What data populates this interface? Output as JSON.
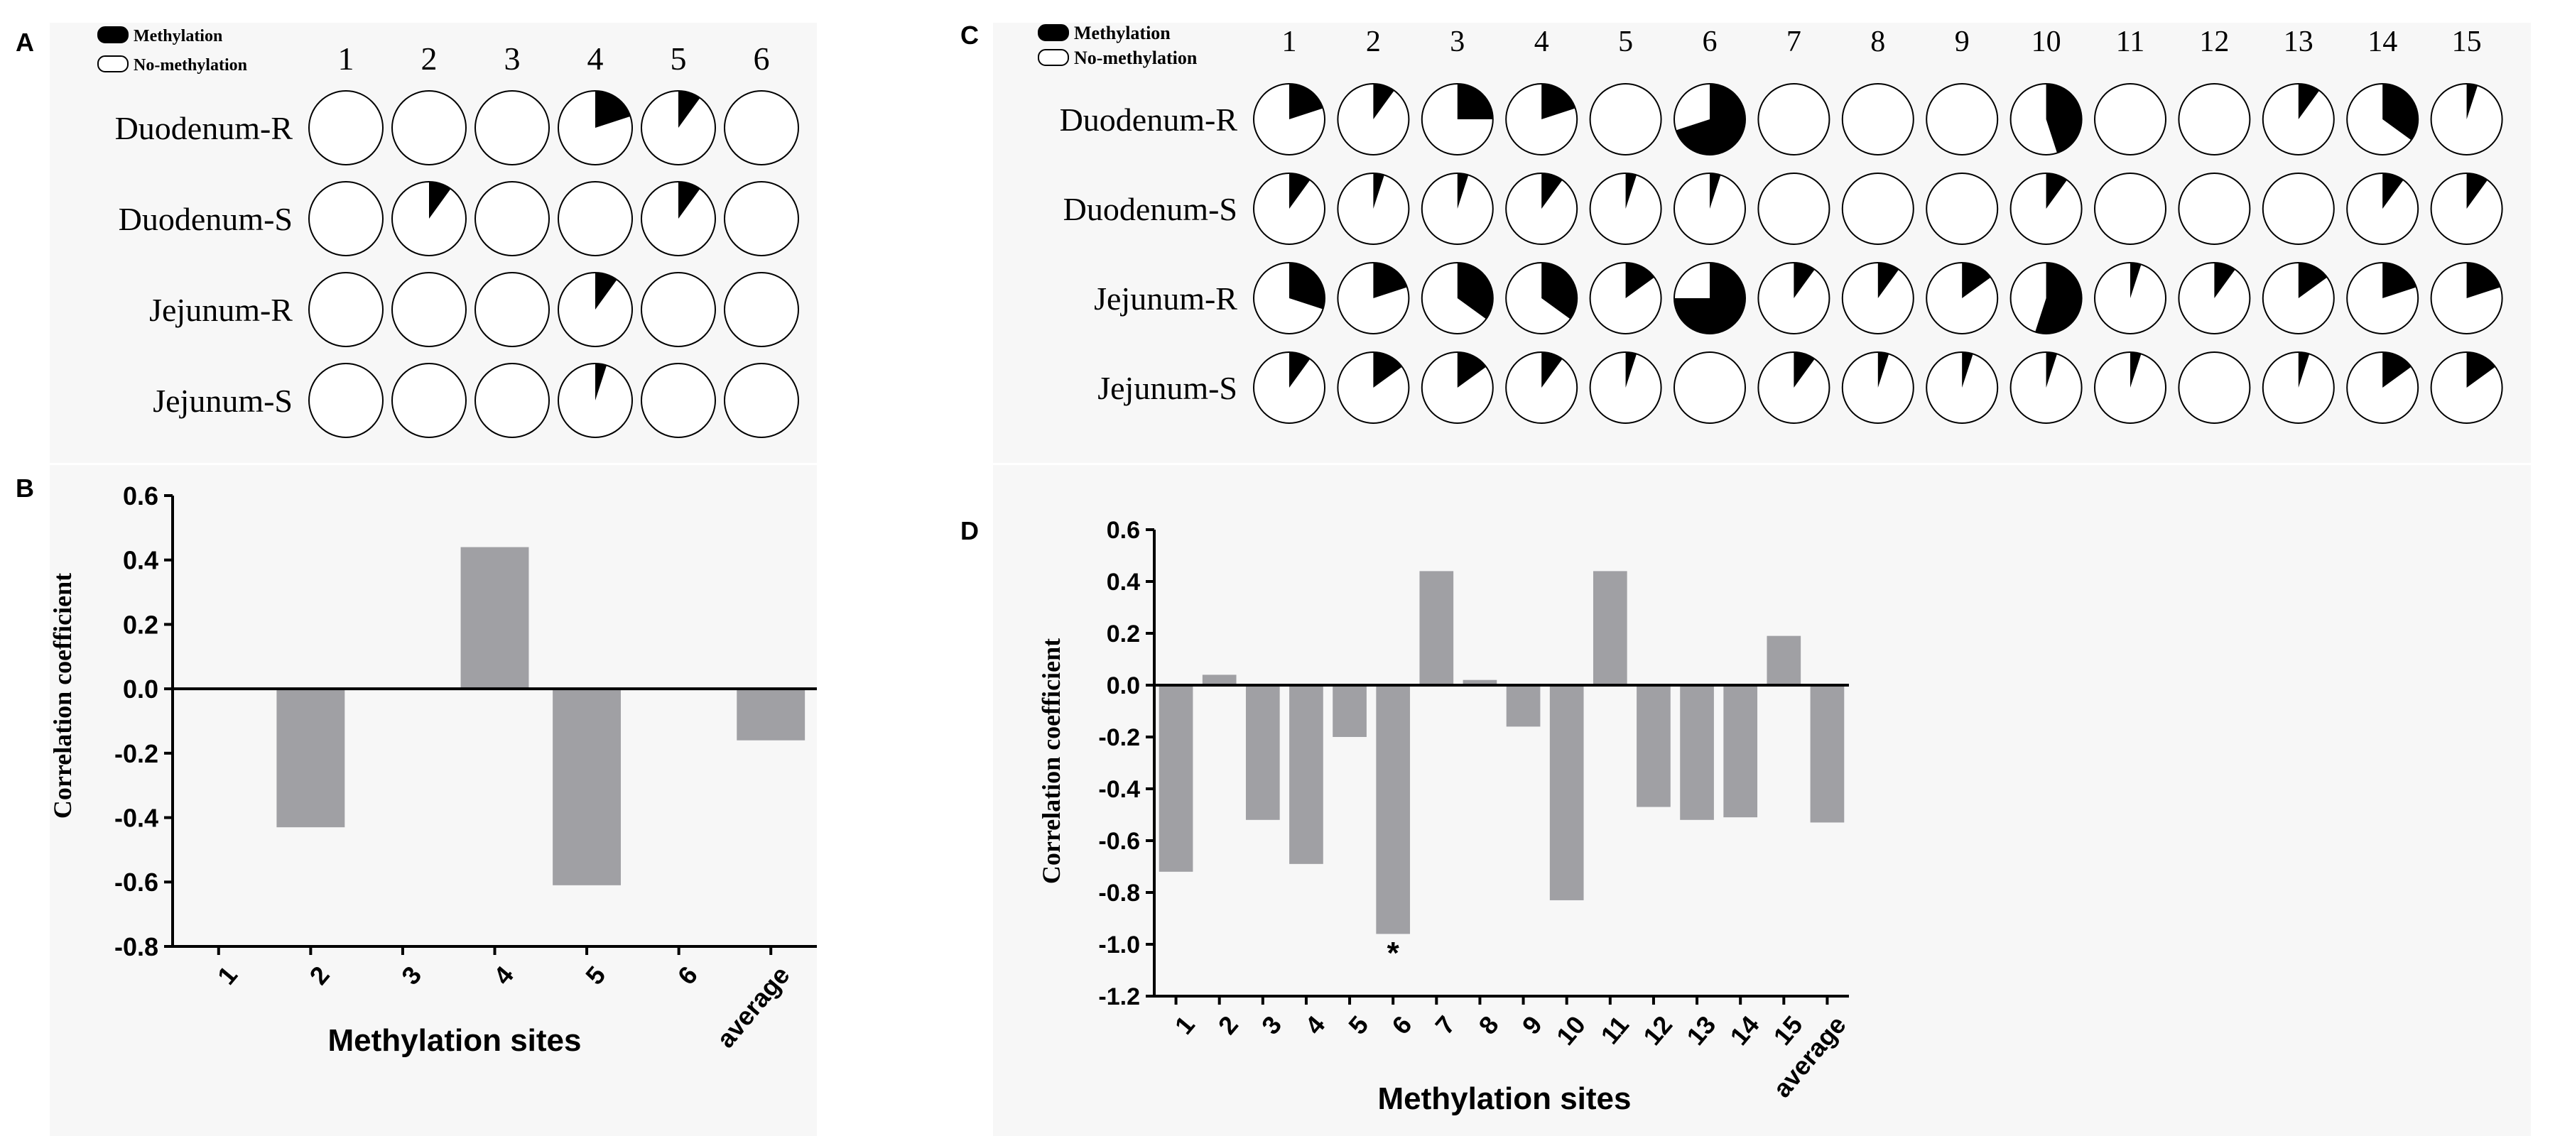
{
  "figure": {
    "panel_labels": {
      "a": "A",
      "b": "B",
      "c": "C",
      "d": "D"
    },
    "legend": {
      "methylation": "Methylation",
      "no_methylation": "No-methylation"
    },
    "colors": {
      "methylated": "#000000",
      "unmethylated": "#ffffff",
      "bar": "#a0a0a4",
      "panel_bg": "#f7f7f7",
      "axis": "#000000"
    }
  },
  "chart_data": [
    {
      "id": "A",
      "type": "pie-grid",
      "title": "",
      "columns": [
        "1",
        "2",
        "3",
        "4",
        "5",
        "6"
      ],
      "rows": [
        "Duodenum-R",
        "Duodenum-S",
        "Jejunum-R",
        "Jejunum-S"
      ],
      "methylation_fraction": [
        [
          0,
          0,
          0,
          0.2,
          0.1,
          0
        ],
        [
          0,
          0.1,
          0,
          0,
          0.1,
          0
        ],
        [
          0,
          0,
          0,
          0.1,
          0,
          0
        ],
        [
          0,
          0,
          0,
          0.05,
          0,
          0
        ]
      ],
      "legend": [
        "Methylation",
        "No-methylation"
      ]
    },
    {
      "id": "B",
      "type": "bar",
      "categories": [
        "1",
        "2",
        "3",
        "4",
        "5",
        "6",
        "average"
      ],
      "values": [
        0,
        -0.43,
        0,
        0.44,
        -0.61,
        0,
        -0.16
      ],
      "title": "",
      "xlabel": "Methylation sites",
      "ylabel": "Correlation coefficient",
      "ylim": [
        -0.8,
        0.6
      ],
      "yticks": [
        "0.6",
        "0.4",
        "0.2",
        "0.0",
        "-0.2",
        "-0.4",
        "-0.6",
        "-0.8"
      ],
      "grid": false
    },
    {
      "id": "C",
      "type": "pie-grid",
      "title": "",
      "columns": [
        "1",
        "2",
        "3",
        "4",
        "5",
        "6",
        "7",
        "8",
        "9",
        "10",
        "11",
        "12",
        "13",
        "14",
        "15"
      ],
      "rows": [
        "Duodenum-R",
        "Duodenum-S",
        "Jejunum-R",
        "Jejunum-S"
      ],
      "methylation_fraction": [
        [
          0.2,
          0.1,
          0.25,
          0.2,
          0,
          0.7,
          0,
          0,
          0,
          0.45,
          0,
          0,
          0.1,
          0.35,
          0.05
        ],
        [
          0.1,
          0.05,
          0.05,
          0.1,
          0.05,
          0.05,
          0,
          0,
          0,
          0.1,
          0,
          0,
          0,
          0.1,
          0.1
        ],
        [
          0.3,
          0.2,
          0.35,
          0.35,
          0.15,
          0.75,
          0.1,
          0.1,
          0.15,
          0.55,
          0.05,
          0.1,
          0.15,
          0.2,
          0.2
        ],
        [
          0.1,
          0.15,
          0.15,
          0.1,
          0.05,
          0,
          0.1,
          0.05,
          0.05,
          0.05,
          0.05,
          0,
          0.05,
          0.15,
          0.15
        ]
      ],
      "legend": [
        "Methylation",
        "No-methylation"
      ]
    },
    {
      "id": "D",
      "type": "bar",
      "categories": [
        "1",
        "2",
        "3",
        "4",
        "5",
        "6",
        "7",
        "8",
        "9",
        "10",
        "11",
        "12",
        "13",
        "14",
        "15",
        "average"
      ],
      "values": [
        -0.72,
        0.04,
        -0.52,
        -0.69,
        -0.2,
        -0.96,
        0.44,
        0.02,
        -0.16,
        -0.83,
        0.44,
        -0.47,
        -0.52,
        -0.51,
        0.19,
        -0.53
      ],
      "annotations": [
        {
          "category": "6",
          "text": "*"
        }
      ],
      "title": "",
      "xlabel": "Methylation sites",
      "ylabel": "Correlation coefficient",
      "ylim": [
        -1.2,
        0.6
      ],
      "yticks": [
        "0.6",
        "0.4",
        "0.2",
        "0.0",
        "-0.2",
        "-0.4",
        "-0.6",
        "-0.8",
        "-1.0",
        "-1.2"
      ],
      "grid": false
    }
  ]
}
